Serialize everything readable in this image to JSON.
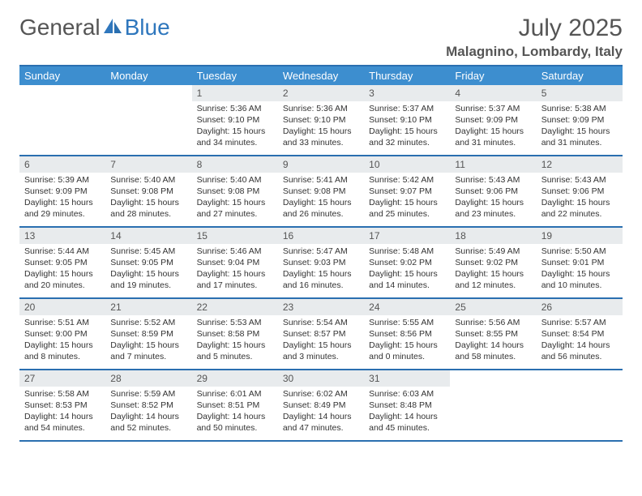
{
  "brand": {
    "part1": "General",
    "part2": "Blue"
  },
  "colors": {
    "header_bg": "#3d8ecf",
    "border": "#2a6fb0",
    "daynum_bg": "#e8ebed",
    "text": "#333333",
    "logo_gray": "#555555",
    "logo_blue": "#2f77bd"
  },
  "title": {
    "month_year": "July 2025",
    "location": "Malagnino, Lombardy, Italy"
  },
  "day_headers": [
    "Sunday",
    "Monday",
    "Tuesday",
    "Wednesday",
    "Thursday",
    "Friday",
    "Saturday"
  ],
  "weeks": [
    [
      {
        "n": "",
        "t": ""
      },
      {
        "n": "",
        "t": ""
      },
      {
        "n": "1",
        "t": "Sunrise: 5:36 AM\nSunset: 9:10 PM\nDaylight: 15 hours and 34 minutes."
      },
      {
        "n": "2",
        "t": "Sunrise: 5:36 AM\nSunset: 9:10 PM\nDaylight: 15 hours and 33 minutes."
      },
      {
        "n": "3",
        "t": "Sunrise: 5:37 AM\nSunset: 9:10 PM\nDaylight: 15 hours and 32 minutes."
      },
      {
        "n": "4",
        "t": "Sunrise: 5:37 AM\nSunset: 9:09 PM\nDaylight: 15 hours and 31 minutes."
      },
      {
        "n": "5",
        "t": "Sunrise: 5:38 AM\nSunset: 9:09 PM\nDaylight: 15 hours and 31 minutes."
      }
    ],
    [
      {
        "n": "6",
        "t": "Sunrise: 5:39 AM\nSunset: 9:09 PM\nDaylight: 15 hours and 29 minutes."
      },
      {
        "n": "7",
        "t": "Sunrise: 5:40 AM\nSunset: 9:08 PM\nDaylight: 15 hours and 28 minutes."
      },
      {
        "n": "8",
        "t": "Sunrise: 5:40 AM\nSunset: 9:08 PM\nDaylight: 15 hours and 27 minutes."
      },
      {
        "n": "9",
        "t": "Sunrise: 5:41 AM\nSunset: 9:08 PM\nDaylight: 15 hours and 26 minutes."
      },
      {
        "n": "10",
        "t": "Sunrise: 5:42 AM\nSunset: 9:07 PM\nDaylight: 15 hours and 25 minutes."
      },
      {
        "n": "11",
        "t": "Sunrise: 5:43 AM\nSunset: 9:06 PM\nDaylight: 15 hours and 23 minutes."
      },
      {
        "n": "12",
        "t": "Sunrise: 5:43 AM\nSunset: 9:06 PM\nDaylight: 15 hours and 22 minutes."
      }
    ],
    [
      {
        "n": "13",
        "t": "Sunrise: 5:44 AM\nSunset: 9:05 PM\nDaylight: 15 hours and 20 minutes."
      },
      {
        "n": "14",
        "t": "Sunrise: 5:45 AM\nSunset: 9:05 PM\nDaylight: 15 hours and 19 minutes."
      },
      {
        "n": "15",
        "t": "Sunrise: 5:46 AM\nSunset: 9:04 PM\nDaylight: 15 hours and 17 minutes."
      },
      {
        "n": "16",
        "t": "Sunrise: 5:47 AM\nSunset: 9:03 PM\nDaylight: 15 hours and 16 minutes."
      },
      {
        "n": "17",
        "t": "Sunrise: 5:48 AM\nSunset: 9:02 PM\nDaylight: 15 hours and 14 minutes."
      },
      {
        "n": "18",
        "t": "Sunrise: 5:49 AM\nSunset: 9:02 PM\nDaylight: 15 hours and 12 minutes."
      },
      {
        "n": "19",
        "t": "Sunrise: 5:50 AM\nSunset: 9:01 PM\nDaylight: 15 hours and 10 minutes."
      }
    ],
    [
      {
        "n": "20",
        "t": "Sunrise: 5:51 AM\nSunset: 9:00 PM\nDaylight: 15 hours and 8 minutes."
      },
      {
        "n": "21",
        "t": "Sunrise: 5:52 AM\nSunset: 8:59 PM\nDaylight: 15 hours and 7 minutes."
      },
      {
        "n": "22",
        "t": "Sunrise: 5:53 AM\nSunset: 8:58 PM\nDaylight: 15 hours and 5 minutes."
      },
      {
        "n": "23",
        "t": "Sunrise: 5:54 AM\nSunset: 8:57 PM\nDaylight: 15 hours and 3 minutes."
      },
      {
        "n": "24",
        "t": "Sunrise: 5:55 AM\nSunset: 8:56 PM\nDaylight: 15 hours and 0 minutes."
      },
      {
        "n": "25",
        "t": "Sunrise: 5:56 AM\nSunset: 8:55 PM\nDaylight: 14 hours and 58 minutes."
      },
      {
        "n": "26",
        "t": "Sunrise: 5:57 AM\nSunset: 8:54 PM\nDaylight: 14 hours and 56 minutes."
      }
    ],
    [
      {
        "n": "27",
        "t": "Sunrise: 5:58 AM\nSunset: 8:53 PM\nDaylight: 14 hours and 54 minutes."
      },
      {
        "n": "28",
        "t": "Sunrise: 5:59 AM\nSunset: 8:52 PM\nDaylight: 14 hours and 52 minutes."
      },
      {
        "n": "29",
        "t": "Sunrise: 6:01 AM\nSunset: 8:51 PM\nDaylight: 14 hours and 50 minutes."
      },
      {
        "n": "30",
        "t": "Sunrise: 6:02 AM\nSunset: 8:49 PM\nDaylight: 14 hours and 47 minutes."
      },
      {
        "n": "31",
        "t": "Sunrise: 6:03 AM\nSunset: 8:48 PM\nDaylight: 14 hours and 45 minutes."
      },
      {
        "n": "",
        "t": ""
      },
      {
        "n": "",
        "t": ""
      }
    ]
  ]
}
